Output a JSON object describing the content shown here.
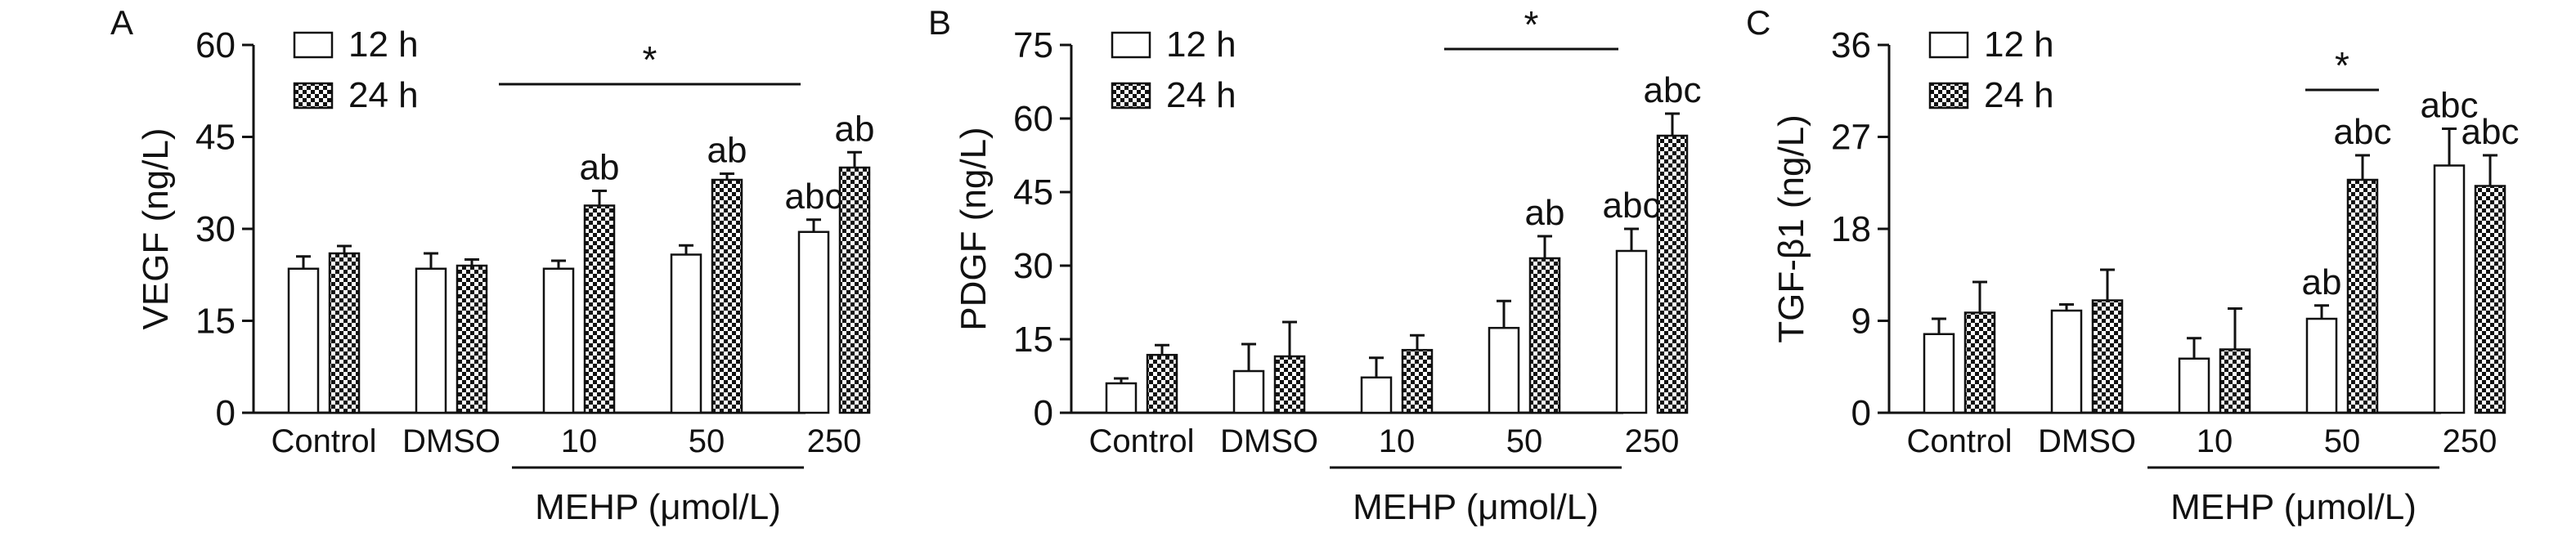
{
  "chart_data": [
    {
      "type": "bar",
      "panel": "A",
      "ylabel": "VEGF (ng/L)",
      "ylim": [
        0,
        60
      ],
      "yticks": [
        "0",
        "15",
        "30",
        "45",
        "60"
      ],
      "categories": [
        "Control",
        "DMSO",
        "10",
        "50",
        "250"
      ],
      "group_label": "MEHP (μmol/L)",
      "series": [
        {
          "name": "12 h",
          "values": [
            23.5,
            23.5,
            23.5,
            25.8,
            29.5
          ],
          "errors": [
            2.0,
            2.5,
            1.3,
            1.5,
            2.0
          ],
          "labels": [
            "",
            "",
            "",
            "",
            "abc"
          ]
        },
        {
          "name": "24 h",
          "values": [
            26.0,
            24.0,
            33.8,
            38.0,
            40.0
          ],
          "errors": [
            1.2,
            1.0,
            2.4,
            1.0,
            2.5
          ],
          "labels": [
            "",
            "",
            "ab",
            "ab",
            "ab"
          ]
        }
      ],
      "significance": {
        "label": "*",
        "from": "10",
        "to": "250"
      },
      "legend_position": "top-left",
      "grid": false
    },
    {
      "type": "bar",
      "panel": "B",
      "ylabel": "PDGF (ng/L)",
      "ylim": [
        0,
        75
      ],
      "yticks": [
        "0",
        "15",
        "30",
        "45",
        "60",
        "75"
      ],
      "categories": [
        "Control",
        "DMSO",
        "10",
        "50",
        "250"
      ],
      "group_label": "MEHP (μmol/L)",
      "series": [
        {
          "name": "12 h",
          "values": [
            6.0,
            8.5,
            7.2,
            17.3,
            33.0
          ],
          "errors": [
            1.0,
            5.5,
            4.0,
            5.5,
            4.5
          ],
          "labels": [
            "",
            "",
            "",
            "",
            "abc"
          ]
        },
        {
          "name": "24 h",
          "values": [
            11.8,
            11.5,
            12.8,
            31.5,
            56.5
          ],
          "errors": [
            2.0,
            7.0,
            3.0,
            4.5,
            4.5
          ],
          "labels": [
            "",
            "",
            "",
            "ab",
            "abc"
          ]
        }
      ],
      "significance": {
        "label": "*",
        "from": "50",
        "to": "250"
      },
      "legend_position": "top-left",
      "grid": false
    },
    {
      "type": "bar",
      "panel": "C",
      "ylabel": "TGF-β1 (ng/L)",
      "ylim": [
        0,
        36
      ],
      "yticks": [
        "0",
        "9",
        "18",
        "27",
        "36"
      ],
      "categories": [
        "Control",
        "DMSO",
        "10",
        "50",
        "250"
      ],
      "group_label": "MEHP (μmol/L)",
      "series": [
        {
          "name": "12 h",
          "values": [
            7.7,
            10.0,
            5.3,
            9.2,
            24.2
          ],
          "errors": [
            1.5,
            0.6,
            2.0,
            1.3,
            3.6
          ],
          "labels": [
            "",
            "",
            "",
            "ab",
            "abc"
          ]
        },
        {
          "name": "24 h",
          "values": [
            9.8,
            11.0,
            6.2,
            22.8,
            22.2
          ],
          "errors": [
            3.0,
            3.0,
            4.0,
            2.4,
            3.0
          ],
          "labels": [
            "",
            "",
            "",
            "abc",
            "abc"
          ]
        }
      ],
      "significance": {
        "label": "*",
        "from": "50",
        "to": "50"
      },
      "legend_position": "top-left",
      "grid": false
    }
  ]
}
